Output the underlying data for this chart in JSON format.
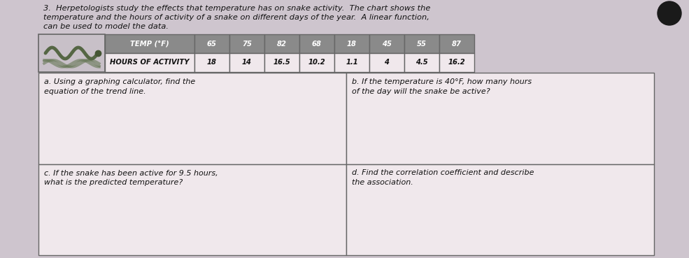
{
  "title_line1": "3.  Herpetologists study the effects that temperature has on snake activity.  The chart shows the",
  "title_line2": "temperature and the hours of activity of a snake on different days of the year.  A linear function,",
  "title_line3": "can be used to model the data.",
  "table_header": [
    "TEMP (°F)",
    "65",
    "75",
    "82",
    "68",
    "18",
    "45",
    "55",
    "87"
  ],
  "table_row": [
    "HOURS OF ACTIVITY",
    "18",
    "14",
    "16.5",
    "10.2",
    "1.1",
    "4",
    "4.5",
    "16.2"
  ],
  "cell_a_lines": [
    "a. Using a graphing calculator, find the",
    "equation of the trend line."
  ],
  "cell_b_lines": [
    "b. If the temperature is 40°F, how many hours",
    "of the day will the snake be active?"
  ],
  "cell_c_lines": [
    "c. If the snake has been active for 9.5 hours,",
    "what is the predicted temperature?"
  ],
  "cell_d_lines": [
    "d. Find the correlation coefficient and describe",
    "the association."
  ],
  "body_bg": "#cec5ce",
  "header_bg": "#8a8a8a",
  "cell_bg": "#f0e8ec",
  "snake_bg": "#c8c0c8",
  "grid_color": "#666666",
  "title_color": "#111111",
  "dot_color": "#1a1a1a",
  "text_color": "#111111"
}
